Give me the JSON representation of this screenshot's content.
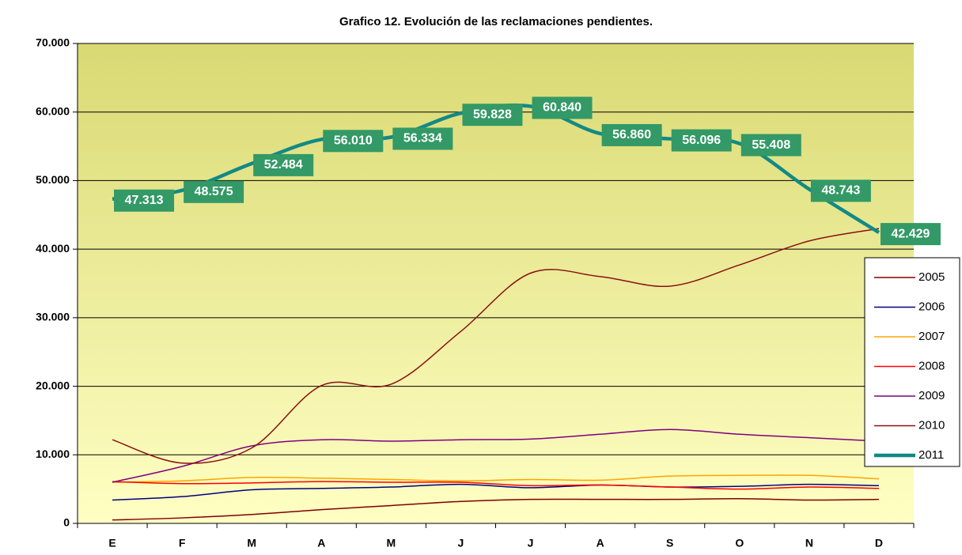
{
  "chart_data": {
    "type": "line",
    "title": "Grafico 12. Evolución de las reclamaciones pendientes.",
    "categories": [
      "E",
      "F",
      "M",
      "A",
      "M",
      "J",
      "J",
      "A",
      "S",
      "O",
      "N",
      "D"
    ],
    "ylim": [
      0,
      70000
    ],
    "yticks": [
      0,
      {
        "value": 10000,
        "label": "10.000"
      },
      {
        "value": 20000,
        "label": "20.000"
      },
      {
        "value": 30000,
        "label": "30.000"
      },
      {
        "value": 40000,
        "label": "40.000"
      },
      {
        "value": 50000,
        "label": "50.000"
      },
      {
        "value": 60000,
        "label": "60.000"
      },
      {
        "value": 70000,
        "label": "70.000"
      }
    ],
    "grid": true,
    "legend": "right",
    "series": [
      {
        "name": "2005",
        "color": "#800000",
        "values": [
          500,
          800,
          1300,
          2000,
          2600,
          3200,
          3500,
          3500,
          3500,
          3600,
          3400,
          3500
        ]
      },
      {
        "name": "2006",
        "color": "#000080",
        "values": [
          3400,
          3900,
          4900,
          5100,
          5300,
          5700,
          5200,
          5600,
          5300,
          5400,
          5700,
          5500
        ]
      },
      {
        "name": "2007",
        "color": "#ffa500",
        "values": [
          6000,
          6200,
          6700,
          6600,
          6400,
          6200,
          6400,
          6300,
          6900,
          7000,
          7000,
          6500
        ]
      },
      {
        "name": "2008",
        "color": "#ff0000",
        "values": [
          6100,
          5800,
          5900,
          6100,
          6000,
          6000,
          5500,
          5600,
          5300,
          5000,
          5300,
          5100
        ]
      },
      {
        "name": "2009",
        "color": "#800080",
        "values": [
          6000,
          8300,
          11300,
          12200,
          12000,
          12200,
          12300,
          13000,
          13700,
          13000,
          12500,
          12000
        ]
      },
      {
        "name": "2010",
        "color": "#8b1010",
        "values": [
          12200,
          8800,
          11000,
          20100,
          20300,
          28000,
          36500,
          36000,
          34600,
          37700,
          41200,
          43000
        ]
      },
      {
        "name": "2011",
        "color": "#118a86",
        "values": [
          47313,
          48575,
          52484,
          56010,
          56334,
          59828,
          60840,
          56860,
          56096,
          55408,
          48743,
          42429
        ],
        "value_labels": [
          "47.313",
          "48.575",
          "52.484",
          "56.010",
          "56.334",
          "59.828",
          "60.840",
          "56.860",
          "56.096",
          "55.408",
          "48.743",
          "42.429"
        ]
      }
    ]
  }
}
